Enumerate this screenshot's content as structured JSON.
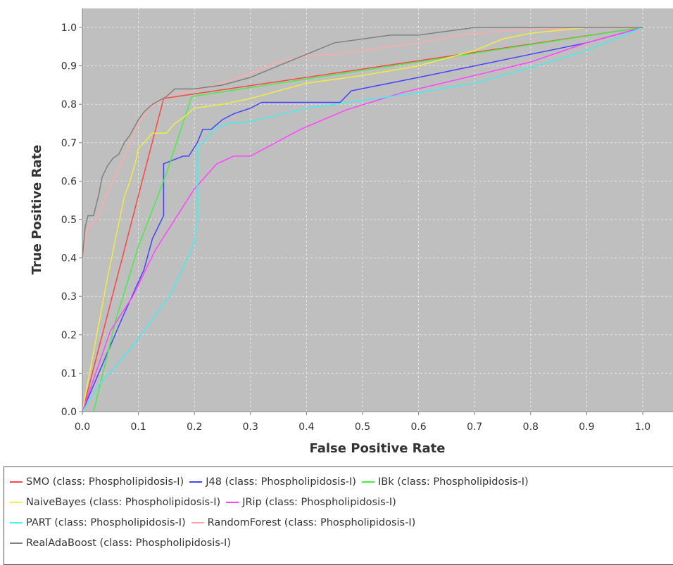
{
  "chart_data": {
    "type": "line",
    "xlabel": "False Positive Rate",
    "ylabel": "True Positive Rate",
    "xlim": [
      0.0,
      1.05
    ],
    "ylim": [
      0.0,
      1.05
    ],
    "xticks": [
      "0.0",
      "0.1",
      "0.2",
      "0.3",
      "0.4",
      "0.5",
      "0.6",
      "0.7",
      "0.8",
      "0.9",
      "1.0"
    ],
    "yticks": [
      "0.0",
      "0.1",
      "0.2",
      "0.3",
      "0.4",
      "0.5",
      "0.6",
      "0.7",
      "0.8",
      "0.9",
      "1.0"
    ],
    "grid": true,
    "plot_background": "#bfbfbf",
    "legend_position": "bottom",
    "series": [
      {
        "name": "SMO (class: Phospholipidosis-I)",
        "color": "#ff4444",
        "x": [
          0,
          0.145,
          1.0
        ],
        "y": [
          0,
          0.815,
          1.0
        ]
      },
      {
        "name": "J48 (class: Phospholipidosis-I)",
        "color": "#4444ff",
        "x": [
          0,
          0.07,
          0.11,
          0.125,
          0.145,
          0.145,
          0.18,
          0.19,
          0.205,
          0.215,
          0.23,
          0.25,
          0.27,
          0.3,
          0.32,
          0.4,
          0.46,
          0.48,
          0.6,
          0.7,
          0.8,
          0.9,
          1.0
        ],
        "y": [
          0,
          0.24,
          0.37,
          0.45,
          0.51,
          0.645,
          0.665,
          0.665,
          0.7,
          0.735,
          0.735,
          0.76,
          0.775,
          0.79,
          0.805,
          0.805,
          0.805,
          0.835,
          0.87,
          0.9,
          0.93,
          0.96,
          1.0
        ]
      },
      {
        "name": "IBk (class: Phospholipidosis-I)",
        "color": "#44ee44",
        "x": [
          0.02,
          0.06,
          0.1,
          0.15,
          0.195,
          1.0
        ],
        "y": [
          0,
          0.24,
          0.43,
          0.62,
          0.82,
          1.0
        ]
      },
      {
        "name": "NaiveBayes (class: Phospholipidosis-I)",
        "color": "#eeee44",
        "x": [
          0.0,
          0.045,
          0.055,
          0.065,
          0.075,
          0.085,
          0.095,
          0.1,
          0.11,
          0.125,
          0.15,
          0.165,
          0.18,
          0.2,
          0.25,
          0.3,
          0.35,
          0.4,
          0.5,
          0.6,
          0.7,
          0.75,
          0.8,
          0.9,
          1.0
        ],
        "y": [
          0.0,
          0.35,
          0.42,
          0.49,
          0.56,
          0.6,
          0.65,
          0.685,
          0.7,
          0.725,
          0.725,
          0.75,
          0.765,
          0.79,
          0.8,
          0.815,
          0.835,
          0.855,
          0.875,
          0.9,
          0.94,
          0.97,
          0.985,
          1.0,
          1.0
        ]
      },
      {
        "name": "JRip (class: Phospholipidosis-I)",
        "color": "#ff44ff",
        "x": [
          0.0,
          0.05,
          0.09,
          0.13,
          0.165,
          0.2,
          0.24,
          0.27,
          0.3,
          0.39,
          0.47,
          0.57,
          0.7,
          0.8,
          0.9,
          1.0
        ],
        "y": [
          0.0,
          0.21,
          0.3,
          0.42,
          0.5,
          0.58,
          0.645,
          0.665,
          0.665,
          0.735,
          0.785,
          0.83,
          0.875,
          0.91,
          0.96,
          1.0
        ]
      },
      {
        "name": "PART (class: Phospholipidosis-I)",
        "color": "#44eeee",
        "x": [
          0.0,
          0.03,
          0.09,
          0.155,
          0.175,
          0.2,
          0.205,
          0.205,
          0.215,
          0.235,
          0.26,
          0.3,
          0.4,
          0.5,
          0.6,
          0.7,
          0.8,
          0.9,
          1.0
        ],
        "y": [
          0.0,
          0.07,
          0.17,
          0.3,
          0.36,
          0.44,
          0.5,
          0.69,
          0.7,
          0.735,
          0.75,
          0.755,
          0.79,
          0.81,
          0.83,
          0.855,
          0.895,
          0.94,
          1.0
        ]
      },
      {
        "name": "RandomForest (class: Phospholipidosis-I)",
        "color": "#ffaaaa",
        "x": [
          0.0,
          0.01,
          0.025,
          0.045,
          0.06,
          0.08,
          0.1,
          0.12,
          0.15,
          0.17,
          0.2,
          0.26,
          0.3,
          0.35,
          0.4,
          0.45,
          0.5,
          0.6,
          0.7,
          0.8,
          0.9,
          1.0
        ],
        "y": [
          0.4,
          0.48,
          0.5,
          0.57,
          0.62,
          0.68,
          0.75,
          0.79,
          0.82,
          0.83,
          0.835,
          0.86,
          0.88,
          0.91,
          0.925,
          0.93,
          0.94,
          0.96,
          0.985,
          0.995,
          1.0,
          1.0
        ]
      },
      {
        "name": "RealAdaBoost (class: Phospholipidosis-I)",
        "color": "#808080",
        "x": [
          0.0,
          0.005,
          0.01,
          0.02,
          0.03,
          0.035,
          0.045,
          0.055,
          0.065,
          0.075,
          0.085,
          0.1,
          0.11,
          0.125,
          0.15,
          0.165,
          0.2,
          0.25,
          0.3,
          0.35,
          0.4,
          0.45,
          0.5,
          0.55,
          0.6,
          0.7,
          0.8,
          0.9,
          1.0
        ],
        "y": [
          0.4,
          0.48,
          0.51,
          0.51,
          0.57,
          0.61,
          0.64,
          0.66,
          0.67,
          0.7,
          0.72,
          0.76,
          0.78,
          0.8,
          0.82,
          0.84,
          0.84,
          0.85,
          0.87,
          0.9,
          0.93,
          0.96,
          0.97,
          0.98,
          0.98,
          1.0,
          1.0,
          1.0,
          1.0
        ]
      }
    ]
  }
}
